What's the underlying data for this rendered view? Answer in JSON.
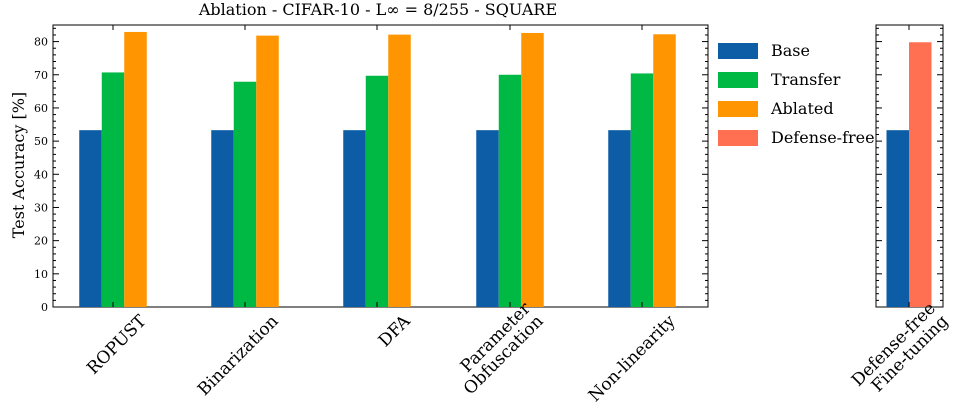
{
  "chart_data": [
    {
      "type": "bar",
      "title": "Ablation - CIFAR-10 - L∞ = 8/255 - SQUARE",
      "xlabel": "",
      "ylabel": "Test Accuracy [%]",
      "ylim": [
        0,
        85
      ],
      "yticks": [
        0,
        10,
        20,
        30,
        40,
        50,
        60,
        70,
        80
      ],
      "categories": [
        "ROPUST",
        "Binarization",
        "DFA",
        "Parameter\nObfuscation",
        "Non-linearity"
      ],
      "series": [
        {
          "name": "Base",
          "color": "#0c5da5",
          "values": [
            53.3,
            53.3,
            53.3,
            53.3,
            53.3
          ]
        },
        {
          "name": "Transfer",
          "color": "#00b945",
          "values": [
            70.7,
            67.9,
            69.7,
            70.0,
            70.4
          ]
        },
        {
          "name": "Ablated",
          "color": "#ff9500",
          "values": [
            82.9,
            81.8,
            82.1,
            82.6,
            82.2
          ]
        }
      ],
      "legend": {
        "position": "right",
        "entries": [
          "Base",
          "Transfer",
          "Ablated",
          "Defense-free"
        ]
      },
      "grid": false
    },
    {
      "type": "bar",
      "ylim": [
        0,
        85
      ],
      "categories": [
        "Defense-free\nFine-tuning"
      ],
      "series": [
        {
          "name": "Base",
          "color": "#0c5da5",
          "values": [
            53.3
          ]
        },
        {
          "name": "Defense-free",
          "color": "#ff6f52",
          "values": [
            79.8
          ]
        }
      ],
      "grid": false
    }
  ],
  "legend_colors": {
    "Base": "#0c5da5",
    "Transfer": "#00b945",
    "Ablated": "#ff9500",
    "Defense-free": "#ff6f52"
  }
}
